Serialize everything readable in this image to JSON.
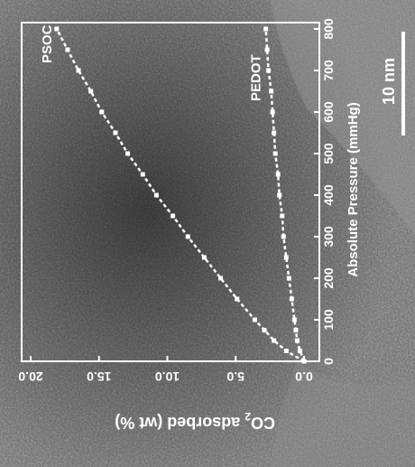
{
  "background": "TEM micrograph (grayscale texture)",
  "scale_bar": {
    "label": "10 nm",
    "color": "#ffffff"
  },
  "chart_data": {
    "type": "line",
    "orientation": "rotated 90 degrees clockwise",
    "xlabel": "Absolute Pressure (mmHg)",
    "ylabel_parts": {
      "prefix": "CO",
      "subscript": "2",
      "suffix": " adsorbed (wt %)"
    },
    "xlim": [
      0,
      800
    ],
    "ylim": [
      0,
      20
    ],
    "x_ticks": [
      "0",
      "100",
      "200",
      "300",
      "400",
      "500",
      "600",
      "700",
      "800"
    ],
    "y_ticks": [
      "0.0",
      "5.0",
      "10.0",
      "15.0",
      "20.0"
    ],
    "series": [
      {
        "name": "PSOC",
        "color": "#ffffff",
        "x": [
          0,
          25,
          50,
          75,
          100,
          150,
          200,
          250,
          300,
          350,
          400,
          450,
          500,
          550,
          600,
          650,
          700,
          750,
          800
        ],
        "y": [
          0.0,
          1.3,
          2.2,
          2.9,
          3.6,
          4.9,
          6.1,
          7.3,
          8.5,
          9.6,
          10.8,
          11.8,
          12.9,
          13.8,
          14.8,
          15.6,
          16.5,
          17.3,
          18.1
        ]
      },
      {
        "name": "PEDOT",
        "color": "#ffffff",
        "x": [
          0,
          25,
          50,
          75,
          100,
          150,
          200,
          250,
          300,
          350,
          400,
          450,
          500,
          550,
          600,
          650,
          700,
          750,
          800
        ],
        "y": [
          0.0,
          0.3,
          0.5,
          0.6,
          0.7,
          0.9,
          1.1,
          1.3,
          1.5,
          1.6,
          1.8,
          1.9,
          2.1,
          2.2,
          2.3,
          2.4,
          2.6,
          2.7,
          2.8
        ]
      }
    ]
  }
}
